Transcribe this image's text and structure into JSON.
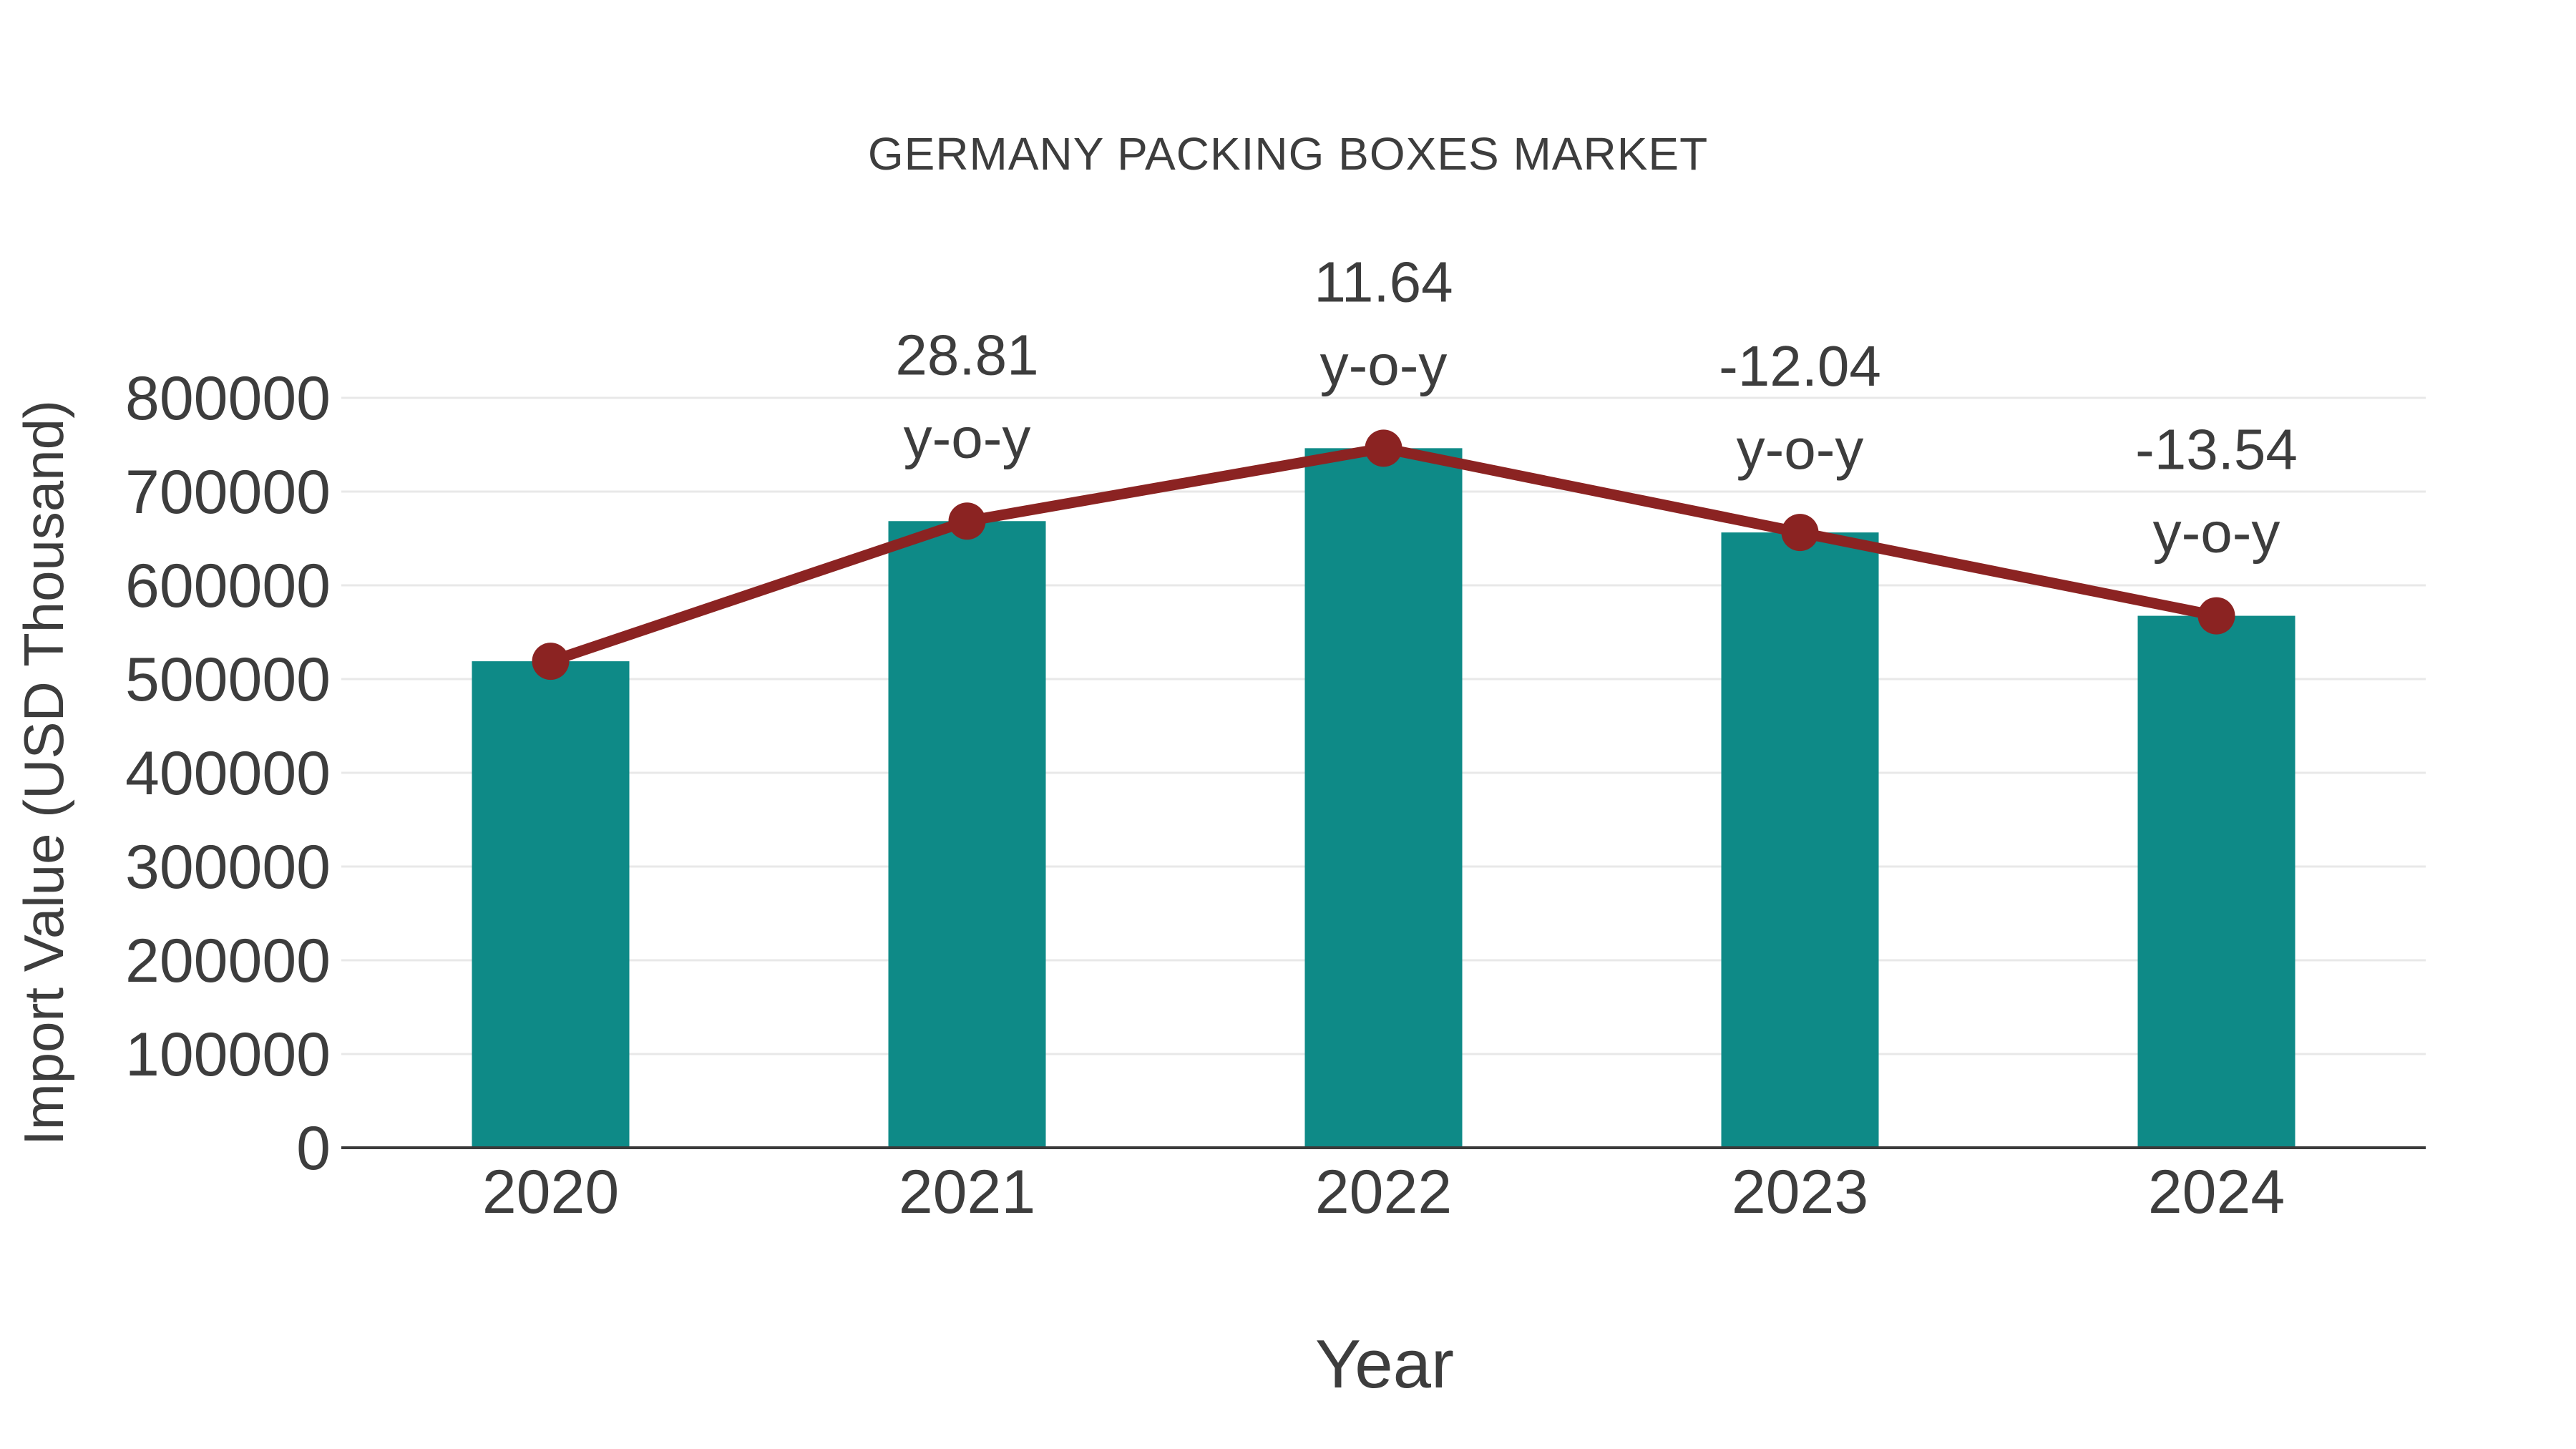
{
  "chart_data": {
    "type": "bar",
    "title": "GERMANY PACKING BOXES MARKET",
    "xlabel": "Year",
    "ylabel": "Import Value (USD Thousand)",
    "categories": [
      "2020",
      "2021",
      "2022",
      "2023",
      "2024"
    ],
    "series": [
      {
        "name": "Import Value (USD Thousand)",
        "type": "bar",
        "color": "#0e8a87",
        "values": [
          519000,
          668500,
          746300,
          656400,
          567500
        ]
      },
      {
        "name": "y-o-y trend line",
        "type": "line",
        "color": "#8b2322",
        "values": [
          519000,
          668500,
          746300,
          656400,
          567500
        ]
      }
    ],
    "annotations": [
      {
        "x": "2021",
        "value_line": "28.81",
        "suffix_line": "y-o-y"
      },
      {
        "x": "2022",
        "value_line": "11.64",
        "suffix_line": "y-o-y"
      },
      {
        "x": "2023",
        "value_line": "-12.04",
        "suffix_line": "y-o-y"
      },
      {
        "x": "2024",
        "value_line": "-13.54",
        "suffix_line": "y-o-y"
      }
    ],
    "ylim": [
      0,
      800000
    ],
    "yticks": [
      0,
      100000,
      200000,
      300000,
      400000,
      500000,
      600000,
      700000,
      800000
    ],
    "grid": "horizontal",
    "legend_position": "none"
  },
  "colors": {
    "bar": "#0e8a87",
    "line": "#8b2322",
    "marker": "#8b2322",
    "text": "#3d3d3d",
    "grid": "#e8e8e8",
    "axis": "#3a3a3a",
    "background": "#ffffff"
  }
}
